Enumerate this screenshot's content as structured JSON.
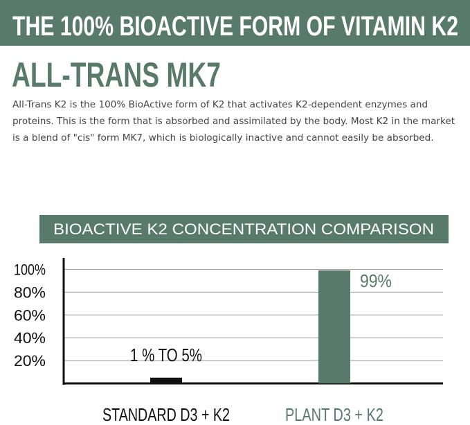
{
  "banner": "THE 100% BIOACTIVE FORM OF VITAMIN K2",
  "heading": "ALL-TRANS MK7",
  "paragraph": "All-Trans K2 is the 100% BioActive form of K2 that activates K2-dependent enzymes and proteins. This is the form that is absorbed and assimilated by the body. Most K2 in the market is a blend of \"cis\" form MK7, which is biologically inactive and cannot easily be absorbed.",
  "chart_data": {
    "type": "bar",
    "title": "BIOACTIVE K2 CONCENTRATION COMPARISON",
    "categories": [
      "STANDARD D3 + K2",
      "PLANT D3 + K2"
    ],
    "values": [
      5,
      99
    ],
    "value_labels": [
      "1 % TO 5%",
      "99%"
    ],
    "colors": [
      "#111111",
      "#587a6b"
    ],
    "ylim": [
      0,
      110
    ],
    "yticks": [
      {
        "value": 20,
        "label": "20%"
      },
      {
        "value": 40,
        "label": "40%"
      },
      {
        "value": 60,
        "label": "60%"
      },
      {
        "value": 80,
        "label": "80%"
      },
      {
        "value": 100,
        "label": "100%"
      }
    ],
    "grid": true
  }
}
